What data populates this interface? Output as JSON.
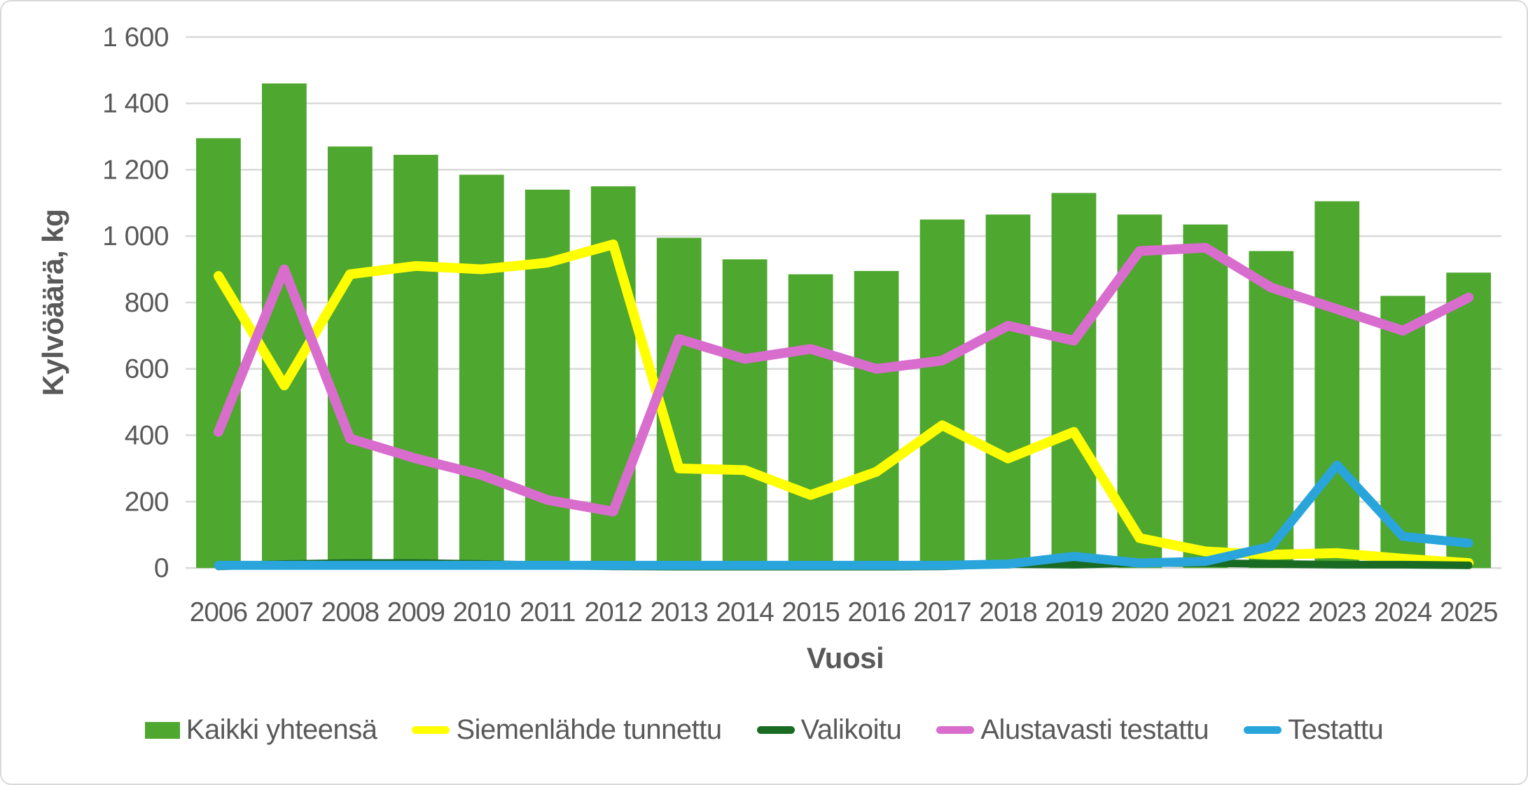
{
  "frame": {
    "background_color": "#FFFFFF",
    "border_color": "#D9D9D9"
  },
  "text_color": "#595959",
  "grid_color": "#D9D9D9",
  "axis_line_color": "#D9D9D9",
  "chart_data": {
    "type": "bar",
    "subtype": "combo-bar-line",
    "title": "",
    "xlabel": "Vuosi",
    "ylabel": "Kylvöäärä, kg",
    "ylim": [
      0,
      1600
    ],
    "y_tick_step": 200,
    "y_tick_labels": [
      "0",
      "200",
      "400",
      "600",
      "800",
      "1 000",
      "1 200",
      "1 400",
      "1 600"
    ],
    "grid": true,
    "legend_position": "bottom",
    "categories": [
      "2006",
      "2007",
      "2008",
      "2009",
      "2010",
      "2011",
      "2012",
      "2013",
      "2014",
      "2015",
      "2016",
      "2017",
      "2018",
      "2019",
      "2020",
      "2021",
      "2022",
      "2023",
      "2024",
      "2025"
    ],
    "series": [
      {
        "name": "Kaikki yhteensä",
        "type": "bar",
        "color": "#4EA72E",
        "values": [
          1295,
          1460,
          1270,
          1245,
          1185,
          1140,
          1150,
          995,
          930,
          885,
          895,
          1050,
          1065,
          1130,
          1065,
          1035,
          955,
          1105,
          820,
          890
        ]
      },
      {
        "name": "Siemenlähde tunnettu",
        "type": "line",
        "color": "#FFFF00",
        "values": [
          880,
          550,
          885,
          910,
          900,
          920,
          975,
          300,
          295,
          220,
          290,
          430,
          330,
          410,
          90,
          50,
          40,
          45,
          28,
          15
        ]
      },
      {
        "name": "Valikoitu",
        "type": "line",
        "color": "#196B24",
        "values": [
          5,
          12,
          15,
          15,
          12,
          8,
          5,
          4,
          4,
          4,
          4,
          5,
          12,
          10,
          15,
          15,
          12,
          10,
          10,
          8
        ]
      },
      {
        "name": "Alustavasti testattu",
        "type": "line",
        "color": "#D86DCD",
        "values": [
          410,
          900,
          390,
          330,
          280,
          205,
          170,
          690,
          630,
          660,
          600,
          625,
          730,
          685,
          955,
          965,
          845,
          780,
          715,
          815
        ]
      },
      {
        "name": "Testattu",
        "type": "line",
        "color": "#29A5DC",
        "values": [
          8,
          8,
          8,
          8,
          8,
          8,
          8,
          8,
          8,
          8,
          8,
          8,
          12,
          35,
          15,
          20,
          65,
          310,
          95,
          75
        ]
      }
    ]
  }
}
